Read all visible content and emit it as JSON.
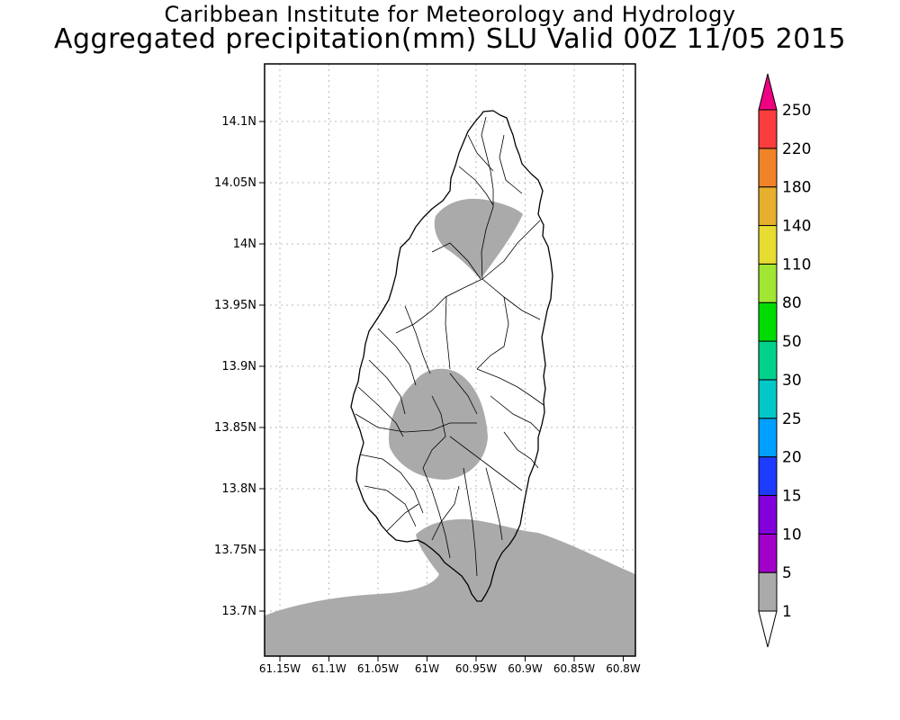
{
  "title": {
    "line1": "Caribbean Institute for Meteorology and Hydrology",
    "line2": "Aggregated precipitation(mm) SLU Valid 00Z 11/05 2015"
  },
  "map": {
    "lat_ticks": [
      "14.1N",
      "14.05N",
      "14N",
      "13.95N",
      "13.9N",
      "13.85N",
      "13.8N",
      "13.75N",
      "13.7N"
    ],
    "lon_ticks": [
      "61.15W",
      "61.1W",
      "61.05W",
      "61W",
      "60.95W",
      "60.9W",
      "60.85W",
      "60.8W"
    ]
  },
  "legend": {
    "bins": [
      {
        "label": "1",
        "color": "#aaaaaa"
      },
      {
        "label": "5",
        "color": "#a000c8"
      },
      {
        "label": "10",
        "color": "#8200dc"
      },
      {
        "label": "15",
        "color": "#1e3cff"
      },
      {
        "label": "20",
        "color": "#00a0ff"
      },
      {
        "label": "25",
        "color": "#00c8c8"
      },
      {
        "label": "30",
        "color": "#00d28c"
      },
      {
        "label": "50",
        "color": "#00dc00"
      },
      {
        "label": "80",
        "color": "#a0e632"
      },
      {
        "label": "110",
        "color": "#e6dc32"
      },
      {
        "label": "140",
        "color": "#e6af2d"
      },
      {
        "label": "180",
        "color": "#f08228"
      },
      {
        "label": "220",
        "color": "#fa3c3c"
      },
      {
        "label": "250",
        "color": "#f00082"
      }
    ]
  }
}
